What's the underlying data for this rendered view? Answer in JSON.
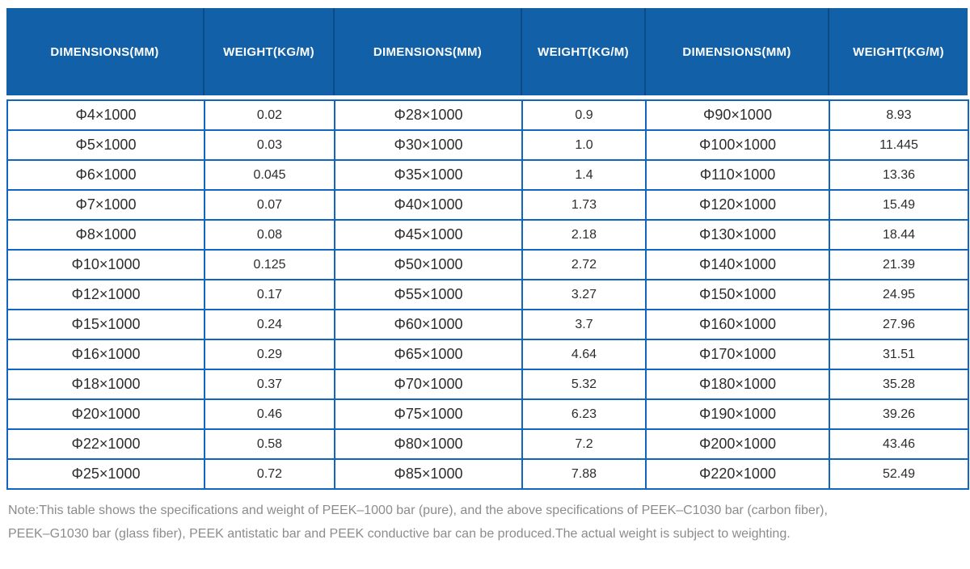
{
  "table": {
    "header_bg_color": "#1261a8",
    "header_divider_color": "#0b4c88",
    "cell_border_color": "#1166c0",
    "header_text_color": "#ffffff",
    "columns": [
      "DIMENSIONS(MM)",
      "WEIGHT(KG/M)",
      "DIMENSIONS(MM)",
      "WEIGHT(KG/M)",
      "DIMENSIONS(MM)",
      "WEIGHT(KG/M)"
    ],
    "rows": [
      [
        "Φ4×1000",
        "0.02",
        "Φ28×1000",
        "0.9",
        "Φ90×1000",
        "8.93"
      ],
      [
        "Φ5×1000",
        "0.03",
        "Φ30×1000",
        "1.0",
        "Φ100×1000",
        "11.445"
      ],
      [
        "Φ6×1000",
        "0.045",
        "Φ35×1000",
        "1.4",
        "Φ110×1000",
        "13.36"
      ],
      [
        "Φ7×1000",
        "0.07",
        "Φ40×1000",
        "1.73",
        "Φ120×1000",
        "15.49"
      ],
      [
        "Φ8×1000",
        "0.08",
        "Φ45×1000",
        "2.18",
        "Φ130×1000",
        "18.44"
      ],
      [
        "Φ10×1000",
        "0.125",
        "Φ50×1000",
        "2.72",
        "Φ140×1000",
        "21.39"
      ],
      [
        "Φ12×1000",
        "0.17",
        "Φ55×1000",
        "3.27",
        "Φ150×1000",
        "24.95"
      ],
      [
        "Φ15×1000",
        "0.24",
        "Φ60×1000",
        "3.7",
        "Φ160×1000",
        "27.96"
      ],
      [
        "Φ16×1000",
        "0.29",
        "Φ65×1000",
        "4.64",
        "Φ170×1000",
        "31.51"
      ],
      [
        "Φ18×1000",
        "0.37",
        "Φ70×1000",
        "5.32",
        "Φ180×1000",
        "35.28"
      ],
      [
        "Φ20×1000",
        "0.46",
        "Φ75×1000",
        "6.23",
        "Φ190×1000",
        "39.26"
      ],
      [
        "Φ22×1000",
        "0.58",
        "Φ80×1000",
        "7.2",
        "Φ200×1000",
        "43.46"
      ],
      [
        "Φ25×1000",
        "0.72",
        "Φ85×1000",
        "7.88",
        "Φ220×1000",
        "52.49"
      ]
    ]
  },
  "note": {
    "lines": [
      "Note:This table shows the specifications and weight of PEEK–1000 bar (pure), and the above specifications of PEEK–C1030 bar (carbon fiber),",
      "PEEK–G1030 bar (glass fiber), PEEK antistatic bar and PEEK conductive bar can be produced.The actual weight is subject to weighting."
    ]
  }
}
